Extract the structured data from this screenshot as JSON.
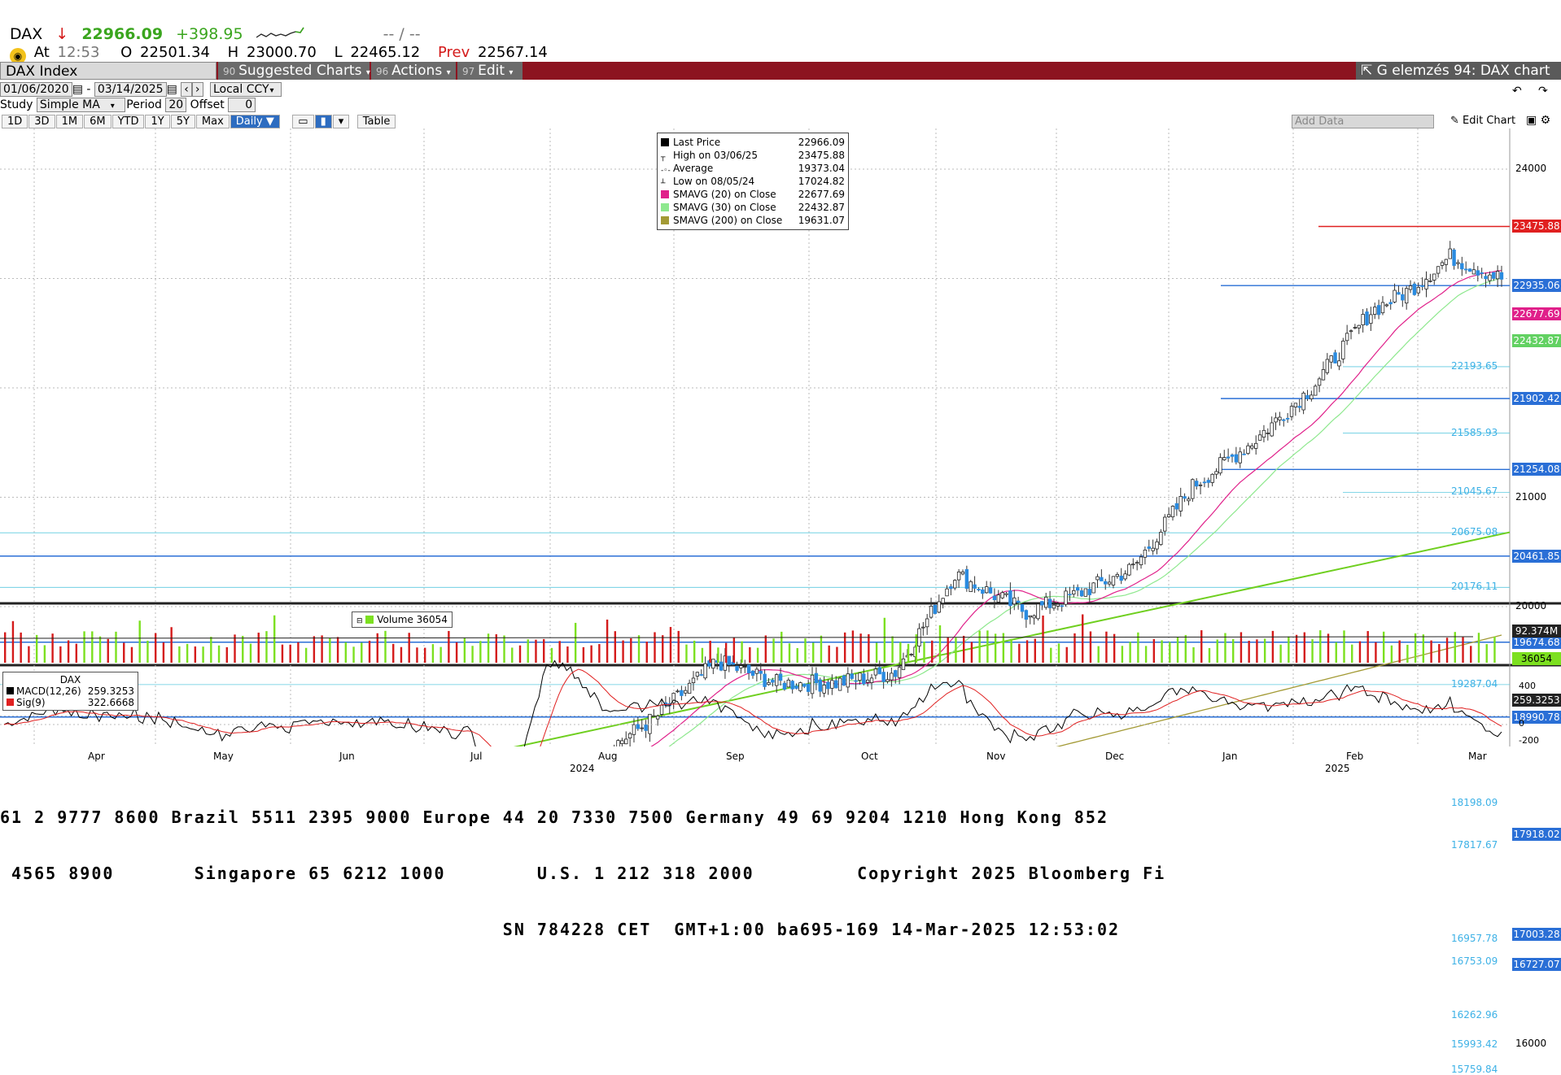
{
  "quote": {
    "ticker": "DAX",
    "arrow": "↓",
    "last": "22966.09",
    "change": "+398.95",
    "placeholder": "-- / --",
    "at_label": "At",
    "at_time": "12:53",
    "open_label": "O",
    "open": "22501.34",
    "high_label": "H",
    "high": "23000.70",
    "low_label": "L",
    "low": "22465.12",
    "prev_label": "Prev",
    "prev": "22567.14"
  },
  "toolbar": {
    "ticker": "DAX Index",
    "suggested": "Suggested Charts",
    "actions": "Actions",
    "edit": "Edit",
    "title": "G elemzés 94: DAX chart"
  },
  "controls": {
    "start_date": "01/06/2020",
    "end_date": "03/14/2025",
    "currency": "Local CCY",
    "study_label": "Study",
    "study": "Simple MA",
    "period_label": "Period",
    "period": "20",
    "offset_label": "Offset",
    "offset": "0",
    "ranges": [
      "1D",
      "3D",
      "1M",
      "6M",
      "YTD",
      "1Y",
      "5Y",
      "Max"
    ],
    "frequency": "Daily ▼",
    "table": "Table",
    "add_data": "Add Data",
    "edit_chart": "Edit Chart"
  },
  "legend": [
    {
      "label": "Last Price",
      "value": "22966.09",
      "color": "#000000",
      "marker": "square"
    },
    {
      "label": "High on 03/06/25",
      "value": "23475.88",
      "color": "#000000",
      "marker": "high"
    },
    {
      "label": "Average",
      "value": "19373.04",
      "color": "#000000",
      "marker": "avg"
    },
    {
      "label": "Low on 08/05/24",
      "value": "17024.82",
      "color": "#000000",
      "marker": "low"
    },
    {
      "label": "SMAVG (20)  on Close",
      "value": "22677.69",
      "color": "#e0208a",
      "marker": "square"
    },
    {
      "label": "SMAVG (30)  on Close",
      "value": "22432.87",
      "color": "#8ee88e",
      "marker": "square"
    },
    {
      "label": "SMAVG (200)  on Close",
      "value": "19631.07",
      "color": "#a39a35",
      "marker": "square"
    }
  ],
  "volume_legend": {
    "label": "Volume",
    "value": "36054"
  },
  "macd_legend": {
    "title": "DAX",
    "macd_label": "MACD(12,26)",
    "macd_value": "259.3253",
    "sig_label": "Sig(9)",
    "sig_value": "322.6668"
  },
  "right_axis": {
    "ticks": [
      "24000",
      "21000",
      "20000",
      "16000"
    ],
    "badges": [
      {
        "text": "23475.88",
        "color": "#e02020"
      },
      {
        "text": "22935.06",
        "color": "#2a6fd6"
      },
      {
        "text": "22677.69",
        "color": "#e0208a"
      },
      {
        "text": "22432.87",
        "color": "#62d162"
      },
      {
        "text": "21902.42",
        "color": "#2a6fd6"
      },
      {
        "text": "21254.08",
        "color": "#2a6fd6"
      },
      {
        "text": "20461.85",
        "color": "#2a6fd6"
      },
      {
        "text": "19674.68",
        "color": "#2a6fd6"
      },
      {
        "text": "18990.78",
        "color": "#2a6fd6"
      },
      {
        "text": "17918.02",
        "color": "#2a6fd6"
      },
      {
        "text": "17003.28",
        "color": "#2a6fd6"
      },
      {
        "text": "16727.07",
        "color": "#2a6fd6"
      }
    ],
    "vol_badge": "92.374M",
    "vol_badge2": "36054",
    "macd_badge": "259.3253",
    "macd_ticks": [
      "400",
      "0",
      "-200"
    ]
  },
  "level_labels": [
    "22193.65",
    "21585.93",
    "21045.67",
    "20675.08",
    "20176.11",
    "19287.04",
    "18198.09",
    "17817.67",
    "16957.78",
    "16753.09",
    "16262.96",
    "15993.42",
    "15759.84"
  ],
  "months": [
    "Apr",
    "May",
    "Jun",
    "Jul",
    "Aug",
    "Sep",
    "Oct",
    "Nov",
    "Dec",
    "Jan",
    "Feb",
    "Mar"
  ],
  "years": [
    "2024",
    "2025"
  ],
  "footer": [
    "61 2 9777 8600 Brazil 5511 2395 9000 Europe 44 20 7330 7500 Germany 49 69 9204 1210 Hong Kong 852",
    " 4565 8900       Singapore 65 6212 1000        U.S. 1 212 318 2000         Copyright 2025 Bloomberg Fi",
    "                                            SN 784228 CET  GMT+1:00 ba695-169 14-Mar-2025 12:53:02"
  ],
  "colors": {
    "accent_bar": "#8c1420",
    "up": "#2a8be0",
    "down": "#222222"
  }
}
